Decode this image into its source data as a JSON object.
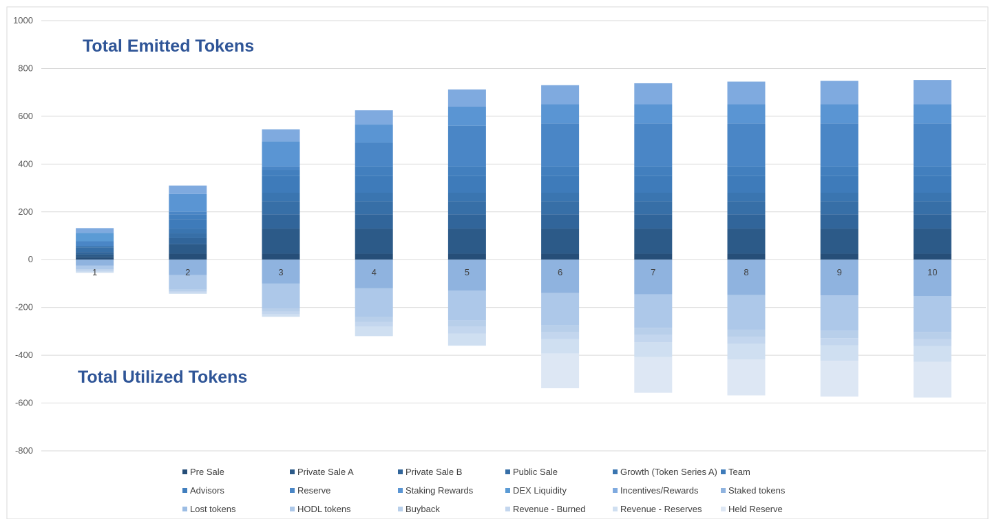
{
  "chart_data": {
    "type": "bar",
    "stacked": true,
    "categories": [
      "1",
      "2",
      "3",
      "4",
      "5",
      "6",
      "7",
      "8",
      "9",
      "10"
    ],
    "ylim": [
      -800,
      1000
    ],
    "yticks": [
      -800,
      -600,
      -400,
      -200,
      0,
      200,
      400,
      600,
      800,
      1000
    ],
    "grid": true,
    "legend_position": "bottom",
    "annotations": {
      "emitted": "Total Emitted Tokens",
      "utilized": "Total Utilized Tokens"
    },
    "series": [
      {
        "name": "Pre Sale",
        "color": "#264e78",
        "values": [
          10,
          25,
          25,
          25,
          25,
          25,
          25,
          25,
          25,
          25
        ]
      },
      {
        "name": "Private Sale A",
        "color": "#2c5a88",
        "values": [
          12,
          40,
          105,
          105,
          105,
          105,
          105,
          105,
          105,
          105
        ]
      },
      {
        "name": "Private Sale B",
        "color": "#31659a",
        "values": [
          10,
          25,
          60,
          60,
          60,
          60,
          60,
          60,
          60,
          60
        ]
      },
      {
        "name": "Public Sale",
        "color": "#376fa7",
        "values": [
          20,
          20,
          55,
          55,
          55,
          55,
          55,
          55,
          55,
          55
        ]
      },
      {
        "name": "Growth (Token Series A)",
        "color": "#3a75b0",
        "values": [
          5,
          20,
          35,
          35,
          35,
          35,
          35,
          35,
          35,
          35
        ]
      },
      {
        "name": "Team",
        "color": "#3e7bba",
        "values": [
          0,
          40,
          70,
          70,
          70,
          70,
          70,
          70,
          70,
          70
        ]
      },
      {
        "name": "Advisors",
        "color": "#427fbe",
        "values": [
          0,
          20,
          25,
          40,
          40,
          40,
          40,
          40,
          40,
          40
        ]
      },
      {
        "name": "Reserve",
        "color": "#4a86c6",
        "values": [
          20,
          10,
          15,
          100,
          170,
          180,
          180,
          180,
          180,
          180
        ]
      },
      {
        "name": "Staking Rewards",
        "color": "#5a95d3",
        "values": [
          0,
          75,
          105,
          75,
          80,
          80,
          80,
          80,
          80,
          80
        ]
      },
      {
        "name": "DEX Liquidity",
        "color": "#5b9bd5",
        "values": [
          35,
          0,
          0,
          0,
          0,
          0,
          0,
          0,
          0,
          0
        ]
      },
      {
        "name": "Incentives/Rewards",
        "color": "#7faadf",
        "values": [
          20,
          35,
          50,
          60,
          72,
          80,
          88,
          95,
          98,
          102
        ]
      },
      {
        "name": "Staked tokens",
        "color": "#8fb3df",
        "values": [
          -25,
          -65,
          -100,
          -120,
          -130,
          -140,
          -145,
          -148,
          -150,
          -152
        ]
      },
      {
        "name": "Lost tokens",
        "color": "#9cbde4",
        "values": [
          0,
          0,
          0,
          0,
          0,
          0,
          0,
          0,
          0,
          0
        ]
      },
      {
        "name": "HODL tokens",
        "color": "#adc8e9",
        "values": [
          -15,
          -60,
          -105,
          -120,
          -125,
          -135,
          -140,
          -145,
          -148,
          -150
        ]
      },
      {
        "name": "Buyback",
        "color": "#b8cfea",
        "values": [
          -5,
          -8,
          -12,
          -20,
          -25,
          -28,
          -30,
          -30,
          -30,
          -30
        ]
      },
      {
        "name": "Revenue - Burned",
        "color": "#c3d6ee",
        "values": [
          -5,
          -5,
          -12,
          -20,
          -30,
          -30,
          -30,
          -30,
          -30,
          -30
        ]
      },
      {
        "name": "Revenue - Reserves",
        "color": "#cfdff1",
        "values": [
          -5,
          -5,
          -10,
          -40,
          -50,
          -60,
          -62,
          -65,
          -65,
          -65
        ]
      },
      {
        "name": "Held Reserve",
        "color": "#dde7f4",
        "values": [
          0,
          0,
          0,
          0,
          0,
          -145,
          -150,
          -150,
          -150,
          -150
        ]
      }
    ]
  }
}
